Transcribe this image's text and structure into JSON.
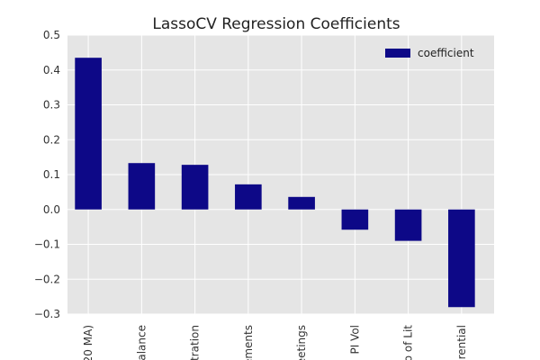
{
  "chart_data": {
    "type": "bar",
    "title": "LassoCV Regression Coefficients",
    "xlabel": "",
    "ylabel": "",
    "ylim": [
      -0.3,
      0.5
    ],
    "yticks": [
      -0.3,
      -0.2,
      -0.1,
      0.0,
      0.1,
      0.2,
      0.3,
      0.4,
      0.5
    ],
    "ytick_labels": [
      "−0.3",
      "−0.2",
      "−0.1",
      "0.0",
      "0.1",
      "0.2",
      "0.3",
      "0.4",
      "0.5"
    ],
    "categories": [
      "20 MA)",
      "alance",
      "tration",
      "ements",
      "eetings",
      "PI Vol",
      "o of Lit",
      "rential"
    ],
    "series": [
      {
        "name": "coefficient",
        "values": [
          0.435,
          0.133,
          0.128,
          0.072,
          0.036,
          -0.058,
          -0.09,
          -0.28
        ]
      }
    ],
    "grid": true,
    "legend": "top-right",
    "colors": {
      "bar": "#0d0887",
      "plot_background": "#e5e5e5",
      "grid": "#ffffff"
    }
  }
}
